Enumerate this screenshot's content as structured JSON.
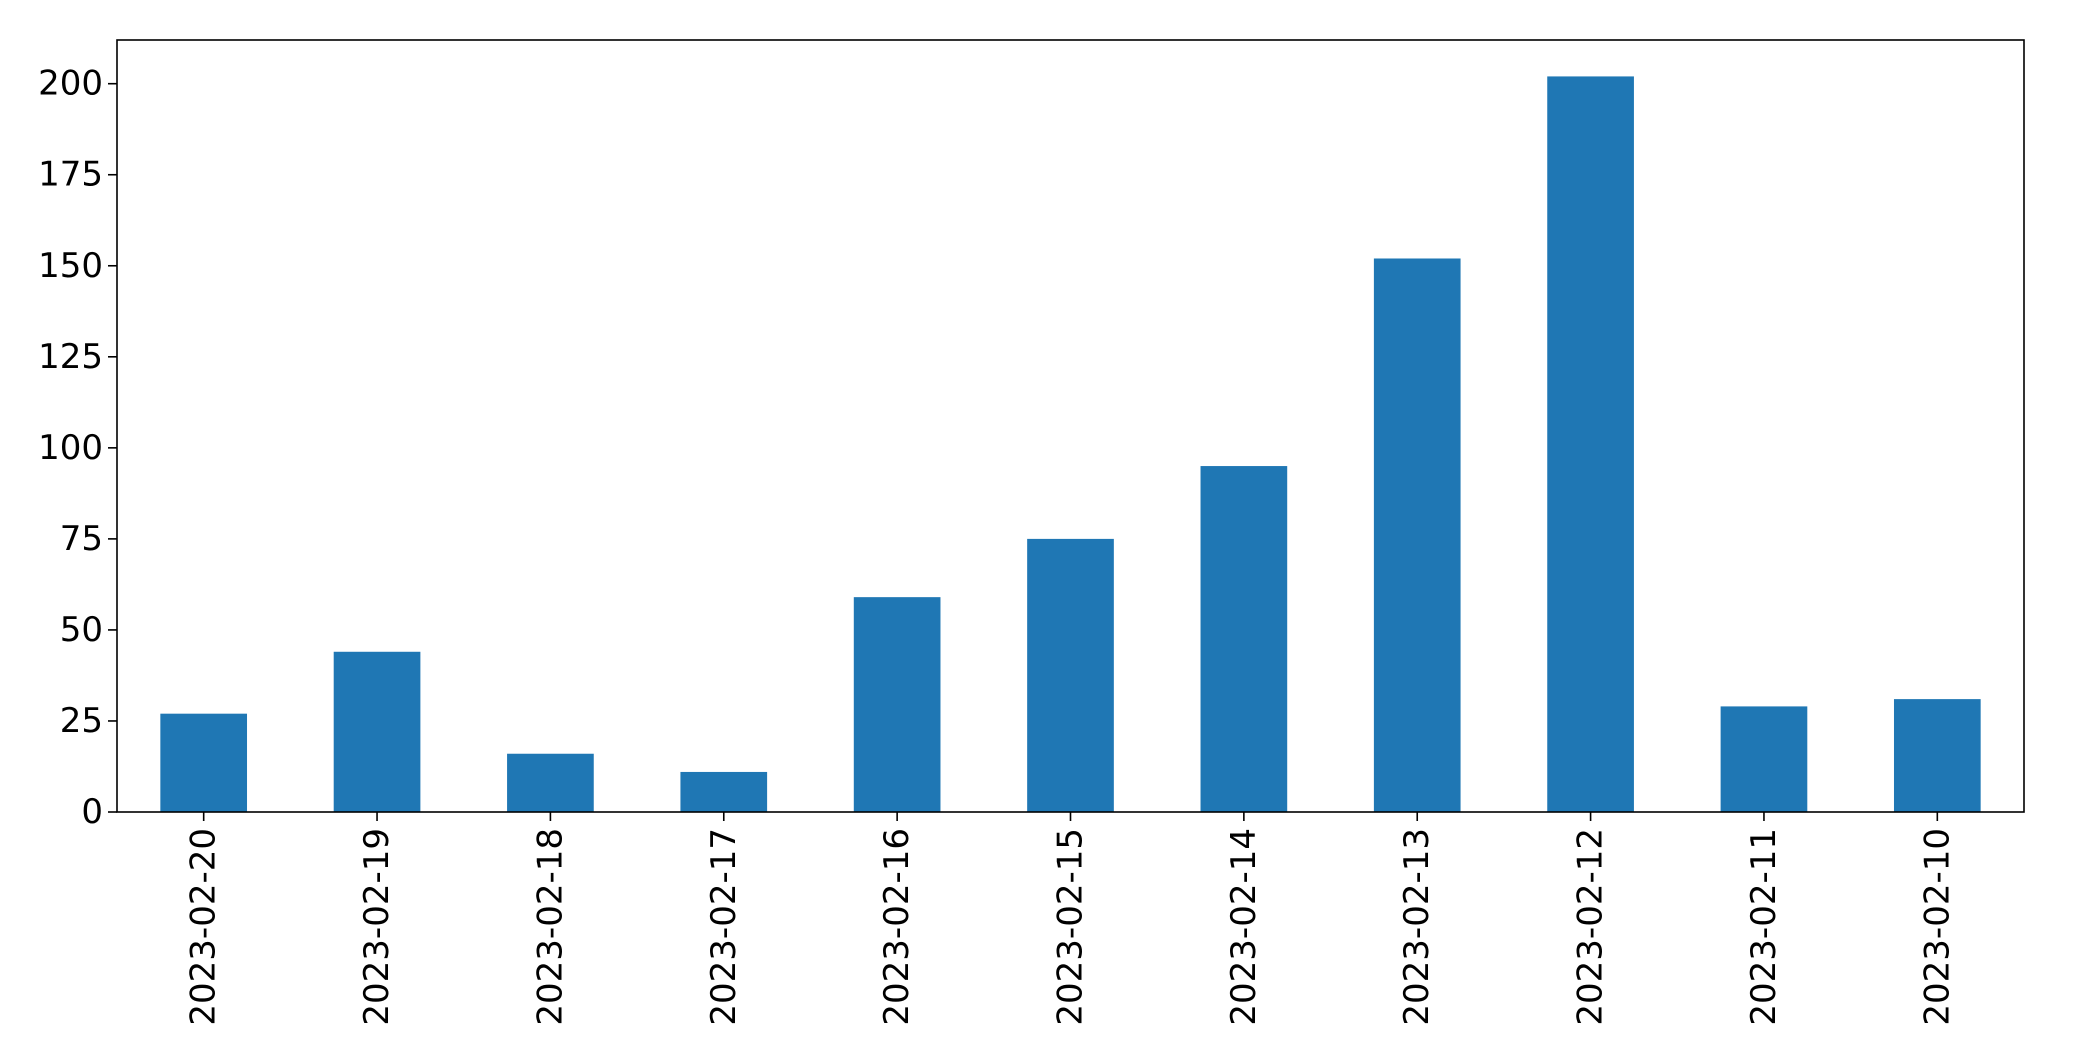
{
  "chart_data": {
    "type": "bar",
    "categories": [
      "2023-02-20",
      "2023-02-19",
      "2023-02-18",
      "2023-02-17",
      "2023-02-16",
      "2023-02-15",
      "2023-02-14",
      "2023-02-13",
      "2023-02-12",
      "2023-02-11",
      "2023-02-10"
    ],
    "values": [
      27,
      44,
      16,
      11,
      59,
      75,
      95,
      152,
      202,
      29,
      31
    ],
    "title": "",
    "xlabel": "",
    "ylabel": "",
    "ylim": [
      0,
      212
    ],
    "yticks": [
      0,
      25,
      50,
      75,
      100,
      125,
      150,
      175,
      200
    ],
    "x_tick_rotation": "vertical",
    "grid": false,
    "legend": "none",
    "bar_color": "#1f77b4"
  }
}
